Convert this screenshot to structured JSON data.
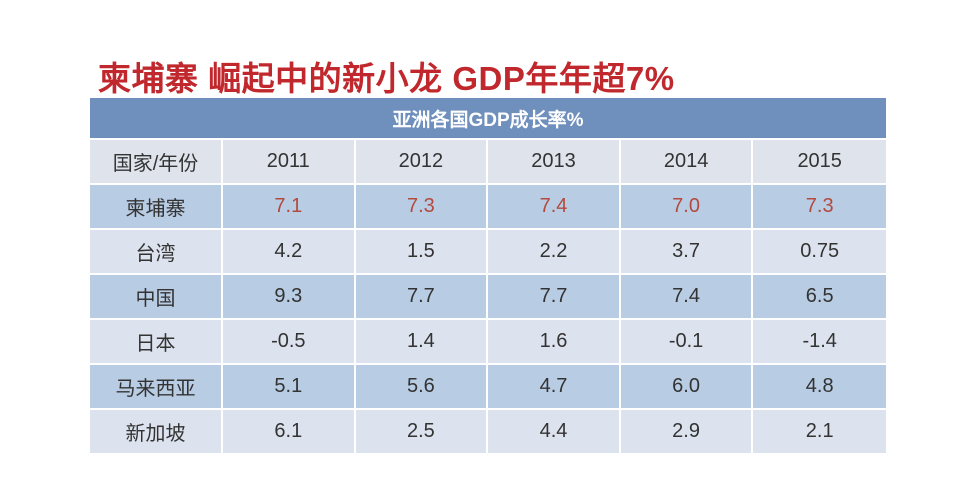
{
  "title": "柬埔寨 崛起中的新小龙  GDP年年超7%",
  "chart_data": {
    "type": "table",
    "title": "亚洲各国GDP成长率%",
    "corner_header": "国家/年份",
    "columns": [
      "2011",
      "2012",
      "2013",
      "2014",
      "2015"
    ],
    "rows": [
      {
        "name": "柬埔寨",
        "values": [
          "7.1",
          "7.3",
          "7.4",
          "7.0",
          "7.3"
        ]
      },
      {
        "name": "台湾",
        "values": [
          "4.2",
          "1.5",
          "2.2",
          "3.7",
          "0.75"
        ]
      },
      {
        "name": "中国",
        "values": [
          "9.3",
          "7.7",
          "7.7",
          "7.4",
          "6.5"
        ]
      },
      {
        "name": "日本",
        "values": [
          "-0.5",
          "1.4",
          "1.6",
          "-0.1",
          "-1.4"
        ]
      },
      {
        "name": "马来西亚",
        "values": [
          "5.1",
          "5.6",
          "4.7",
          "6.0",
          "4.8"
        ]
      },
      {
        "name": "新加坡",
        "values": [
          "6.1",
          "2.5",
          "4.4",
          "2.9",
          "2.1"
        ]
      }
    ],
    "highlight_row": "柬埔寨"
  },
  "colors": {
    "title": "#c0282d",
    "caption_bg": "#6f8fbd",
    "row_dark": "#b8cce4",
    "row_light": "#dde3ee",
    "highlight_text": "#b44a3e"
  }
}
